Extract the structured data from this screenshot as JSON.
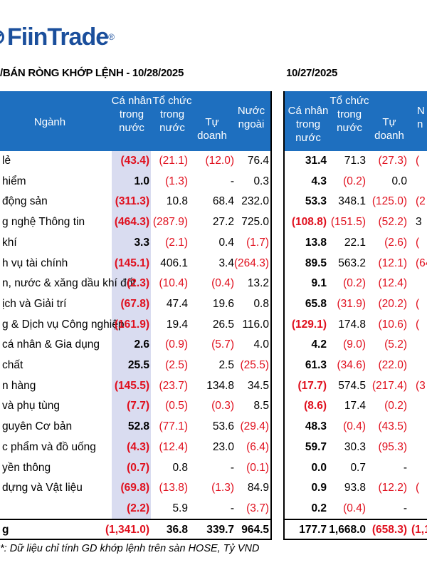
{
  "brand": {
    "name": "FiinTrade",
    "reg": "®"
  },
  "title_left": "/BÁN RÒNG KHỚP LỆNH - 10/28/2025",
  "title_right": "10/27/2025",
  "headers_left": {
    "nganh": "Ngành",
    "ca_nhan": "Cá nhân\ntrong\nnước",
    "to_chuc": "Tổ chức\ntrong\nnước",
    "tu_doanh": "Tự doanh",
    "nuoc_ngoai": "Nước\nngoài"
  },
  "headers_right": {
    "ca_nhan": "Cá nhân\ntrong nước",
    "to_chuc": "Tổ chức\ntrong\nnước",
    "tu_doanh": "Tự doanh",
    "nuoc_ngoai": "N\nn"
  },
  "rows": [
    {
      "name": " lẻ",
      "l": [
        "(43.4)",
        "(21.1)",
        "(12.0)",
        "76.4"
      ],
      "r": [
        "31.4",
        "71.3",
        "(27.3)",
        "("
      ]
    },
    {
      "name": " hiểm",
      "l": [
        "1.0",
        "(1.3)",
        "-",
        "0.3"
      ],
      "r": [
        "4.3",
        "(0.2)",
        "0.0",
        ""
      ]
    },
    {
      "name": " động sản",
      "l": [
        "(311.3)",
        "10.8",
        "68.4",
        "232.0"
      ],
      "r": [
        "53.3",
        "348.1",
        "(125.0)",
        "(2"
      ]
    },
    {
      "name": "g nghệ Thông tin",
      "l": [
        "(464.3)",
        "(287.9)",
        "27.2",
        "725.0"
      ],
      "r": [
        "(108.8)",
        "(151.5)",
        "(52.2)",
        "3"
      ]
    },
    {
      "name": " khí",
      "l": [
        "3.3",
        "(2.1)",
        "0.4",
        "(1.7)"
      ],
      "r": [
        "13.8",
        "22.1",
        "(2.6)",
        "("
      ]
    },
    {
      "name": "h vụ tài chính",
      "l": [
        "(145.1)",
        "406.1",
        "3.4",
        "(264.3)"
      ],
      "r": [
        "89.5",
        "563.2",
        "(12.1)",
        "(64"
      ]
    },
    {
      "name": "n, nước & xăng dầu khí đốt",
      "l": [
        "(2.3)",
        "(10.4)",
        "(0.4)",
        "13.2"
      ],
      "r": [
        "9.1",
        "(0.2)",
        "(12.4)",
        ""
      ]
    },
    {
      "name": "ịch và Giải trí",
      "l": [
        "(67.8)",
        "47.4",
        "19.6",
        "0.8"
      ],
      "r": [
        "65.8",
        "(31.9)",
        "(20.2)",
        "("
      ]
    },
    {
      "name": "g & Dịch vụ Công nghiệp",
      "l": [
        "(161.9)",
        "19.4",
        "26.5",
        "116.0"
      ],
      "r": [
        "(129.1)",
        "174.8",
        "(10.6)",
        "("
      ]
    },
    {
      "name": " cá nhân & Gia dụng",
      "l": [
        "2.6",
        "(0.9)",
        "(5.7)",
        "4.0"
      ],
      "r": [
        "4.2",
        "(9.0)",
        "(5.2)",
        ""
      ]
    },
    {
      "name": " chất",
      "l": [
        "25.5",
        "(2.5)",
        "2.5",
        "(25.5)"
      ],
      "r": [
        "61.3",
        "(34.6)",
        "(22.0)",
        ""
      ]
    },
    {
      "name": "n hàng",
      "l": [
        "(145.5)",
        "(23.7)",
        "134.8",
        "34.5"
      ],
      "r": [
        "(17.7)",
        "574.5",
        "(217.4)",
        "(3"
      ]
    },
    {
      "name": " và phụ tùng",
      "l": [
        "(7.7)",
        "(0.5)",
        "(0.3)",
        "8.5"
      ],
      "r": [
        "(8.6)",
        "17.4",
        "(0.2)",
        ""
      ]
    },
    {
      "name": "guyên Cơ bản",
      "l": [
        "52.8",
        "(77.1)",
        "53.6",
        "(29.4)"
      ],
      "r": [
        "48.3",
        "(0.4)",
        "(43.5)",
        ""
      ]
    },
    {
      "name": "c phẩm và đồ uống",
      "l": [
        "(4.3)",
        "(12.4)",
        "23.0",
        "(6.4)"
      ],
      "r": [
        "59.7",
        "30.3",
        "(95.3)",
        ""
      ]
    },
    {
      "name": "yền thông",
      "l": [
        "(0.7)",
        "0.8",
        "-",
        "(0.1)"
      ],
      "r": [
        "0.0",
        "0.7",
        "-",
        ""
      ]
    },
    {
      "name": " dựng và Vật liệu",
      "l": [
        "(69.8)",
        "(13.8)",
        "(1.3)",
        "84.9"
      ],
      "r": [
        "0.9",
        "93.8",
        "(12.2)",
        "("
      ]
    },
    {
      "name": "",
      "l": [
        "(2.2)",
        "5.9",
        "-",
        "(3.7)"
      ],
      "r": [
        "0.2",
        "(0.4)",
        "-",
        ""
      ]
    }
  ],
  "total": {
    "name": "g",
    "l": [
      "(1,341.0)",
      "36.8",
      "339.7",
      "964.5"
    ],
    "r": [
      "177.7",
      "1,668.0",
      "(658.3)",
      "(1,1"
    ]
  },
  "footnote": "*: Dữ liệu chỉ tính GD khớp lệnh trên sàn HOSE, Tỷ VND",
  "colors": {
    "header_blue": "#1e6fbf",
    "negative_red": "#e0101e",
    "highlight": "#d9dcf0",
    "brand": "#1b4f9c"
  }
}
